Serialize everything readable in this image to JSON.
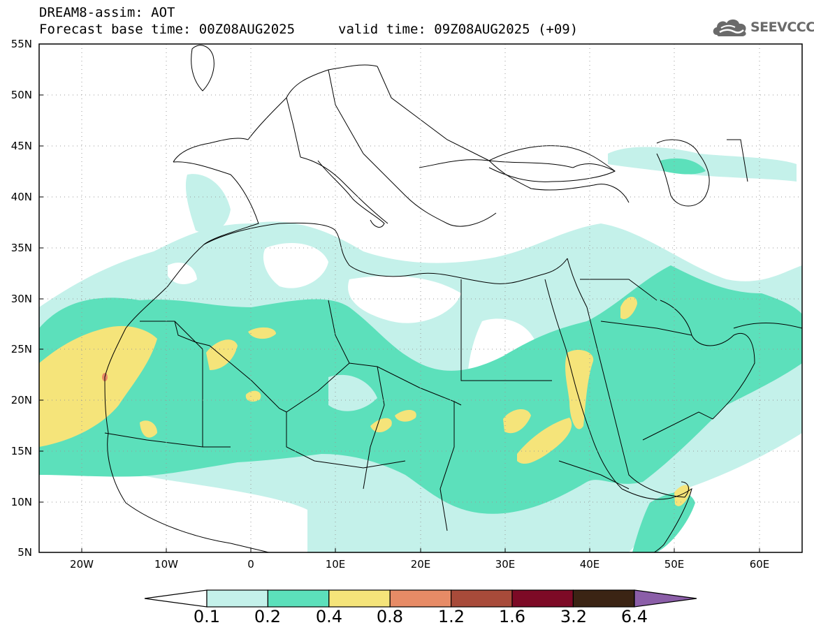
{
  "header": {
    "title": "DREAM8-assim: AOT",
    "base_time": "Forecast base time: 00Z08AUG2025",
    "valid_time": "valid time: 09Z08AUG2025 (+09)"
  },
  "logo": {
    "text": "SEEVCCC",
    "icon": "cloud-icon"
  },
  "map": {
    "variable": "Aerosol Optical Thickness",
    "lat_labels": [
      "55N",
      "50N",
      "45N",
      "40N",
      "35N",
      "30N",
      "25N",
      "20N",
      "15N",
      "10N",
      "5N"
    ],
    "lon_labels": [
      "20W",
      "10W",
      "0",
      "10E",
      "20E",
      "30E",
      "40E",
      "50E",
      "60E"
    ]
  },
  "colorbar": {
    "labels": [
      "0.1",
      "0.2",
      "0.4",
      "0.8",
      "1.2",
      "1.6",
      "3.2",
      "6.4"
    ],
    "colors": [
      "#ffffff",
      "#c4f1ea",
      "#5ce0bb",
      "#f5e47a",
      "#e78b66",
      "#a84b3a",
      "#7d0a26",
      "#3b2414",
      "#8b5ea8"
    ],
    "levels": [
      {
        "min": "0.1",
        "max": "0.2",
        "color": "#c4f1ea"
      },
      {
        "min": "0.2",
        "max": "0.4",
        "color": "#5ce0bb"
      },
      {
        "min": "0.4",
        "max": "0.8",
        "color": "#f5e47a"
      },
      {
        "min": "0.8",
        "max": "1.2",
        "color": "#e78b66"
      },
      {
        "min": "1.2",
        "max": "1.6",
        "color": "#a84b3a"
      },
      {
        "min": "1.6",
        "max": "3.2",
        "color": "#7d0a26"
      },
      {
        "min": "3.2",
        "max": "6.4",
        "color": "#3b2414"
      }
    ]
  }
}
